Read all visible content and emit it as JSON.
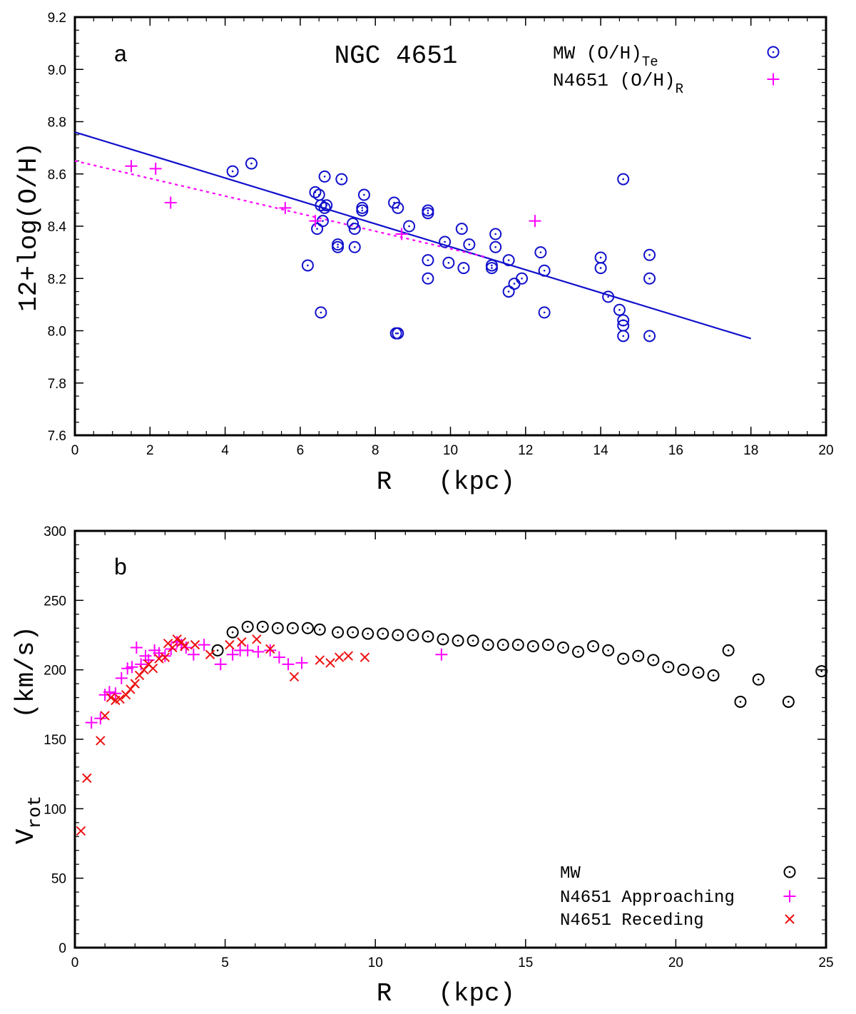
{
  "chart_data": [
    {
      "panel": "a",
      "type": "scatter",
      "title": "NGC 4651",
      "xlabel": "R   (kpc)",
      "ylabel": "12+log(O/H)",
      "xlim": [
        0,
        20
      ],
      "ylim": [
        7.6,
        9.2
      ],
      "xticks": [
        0,
        2,
        4,
        6,
        8,
        10,
        12,
        14,
        16,
        18,
        20
      ],
      "yticks": [
        "7.6",
        "7.8",
        "8.0",
        "8.2",
        "8.4",
        "8.6",
        "8.8",
        "9.0",
        "9.2"
      ],
      "grid": false,
      "legend_position": "top-right",
      "series": [
        {
          "name": "MW (O/H)",
          "subscript": "Te",
          "marker": "circle-dot",
          "color": "#1010cc",
          "points": [
            [
              4.2,
              8.61
            ],
            [
              4.7,
              8.64
            ],
            [
              6.2,
              8.25
            ],
            [
              6.4,
              8.53
            ],
            [
              6.45,
              8.39
            ],
            [
              6.5,
              8.52
            ],
            [
              6.55,
              8.48
            ],
            [
              6.55,
              8.07
            ],
            [
              6.6,
              8.42
            ],
            [
              6.65,
              8.59
            ],
            [
              6.65,
              8.47
            ],
            [
              6.7,
              8.48
            ],
            [
              7.0,
              8.33
            ],
            [
              7.0,
              8.32
            ],
            [
              7.1,
              8.58
            ],
            [
              7.4,
              8.41
            ],
            [
              7.45,
              8.39
            ],
            [
              7.45,
              8.32
            ],
            [
              7.65,
              8.47
            ],
            [
              7.65,
              8.46
            ],
            [
              7.7,
              8.52
            ],
            [
              8.5,
              8.49
            ],
            [
              8.55,
              7.99
            ],
            [
              8.6,
              8.47
            ],
            [
              8.6,
              7.99
            ],
            [
              8.9,
              8.4
            ],
            [
              9.4,
              8.46
            ],
            [
              9.4,
              8.45
            ],
            [
              9.4,
              8.27
            ],
            [
              9.4,
              8.2
            ],
            [
              9.85,
              8.34
            ],
            [
              9.95,
              8.26
            ],
            [
              10.3,
              8.39
            ],
            [
              10.35,
              8.24
            ],
            [
              10.5,
              8.33
            ],
            [
              11.1,
              8.25
            ],
            [
              11.1,
              8.24
            ],
            [
              11.2,
              8.37
            ],
            [
              11.2,
              8.32
            ],
            [
              11.55,
              8.27
            ],
            [
              11.55,
              8.15
            ],
            [
              11.7,
              8.18
            ],
            [
              11.9,
              8.2
            ],
            [
              12.4,
              8.3
            ],
            [
              12.5,
              8.23
            ],
            [
              12.5,
              8.07
            ],
            [
              14.0,
              8.28
            ],
            [
              14.0,
              8.24
            ],
            [
              14.2,
              8.13
            ],
            [
              14.5,
              8.08
            ],
            [
              14.6,
              8.58
            ],
            [
              14.6,
              8.04
            ],
            [
              14.6,
              8.02
            ],
            [
              14.6,
              7.98
            ],
            [
              15.3,
              8.29
            ],
            [
              15.3,
              8.2
            ],
            [
              15.3,
              7.98
            ]
          ]
        },
        {
          "name": "N4651 (O/H)",
          "subscript": "R",
          "marker": "plus",
          "color": "#ff00ff",
          "points": [
            [
              1.5,
              8.63
            ],
            [
              2.15,
              8.62
            ],
            [
              2.55,
              8.49
            ],
            [
              5.6,
              8.47
            ],
            [
              6.4,
              8.42
            ],
            [
              8.7,
              8.37
            ],
            [
              12.25,
              8.42
            ]
          ]
        }
      ],
      "fits": [
        {
          "color": "#1010cc",
          "style": "solid",
          "x": [
            0,
            18
          ],
          "y": [
            8.76,
            7.97
          ]
        },
        {
          "color": "#ff00ff",
          "style": "dotted",
          "x": [
            0,
            11
          ],
          "y": [
            8.65,
            8.28
          ]
        }
      ]
    },
    {
      "panel": "b",
      "type": "scatter",
      "xlabel": "R   (kpc)",
      "ylabel": "V",
      "ylabel_subscript": "rot",
      "ylabel_suffix": "(km/s)",
      "xlim": [
        0,
        25
      ],
      "ylim": [
        0,
        300
      ],
      "xticks": [
        0,
        5,
        10,
        15,
        20,
        25
      ],
      "yticks": [
        0,
        50,
        100,
        150,
        200,
        250,
        300
      ],
      "grid": false,
      "legend_position": "bottom-right",
      "series": [
        {
          "name": "MW",
          "marker": "circle-dot",
          "color": "#000000",
          "points": [
            [
              4.75,
              214
            ],
            [
              5.25,
              227
            ],
            [
              5.75,
              231
            ],
            [
              6.25,
              231
            ],
            [
              6.75,
              230
            ],
            [
              7.25,
              230
            ],
            [
              7.75,
              230
            ],
            [
              8.15,
              229
            ],
            [
              8.75,
              227
            ],
            [
              9.25,
              227
            ],
            [
              9.75,
              226
            ],
            [
              10.25,
              226
            ],
            [
              10.75,
              225
            ],
            [
              11.25,
              225
            ],
            [
              11.75,
              224
            ],
            [
              12.25,
              222
            ],
            [
              12.75,
              221
            ],
            [
              13.25,
              221
            ],
            [
              13.75,
              218
            ],
            [
              14.25,
              218
            ],
            [
              14.75,
              218
            ],
            [
              15.25,
              217
            ],
            [
              15.75,
              218
            ],
            [
              16.25,
              216
            ],
            [
              16.75,
              213
            ],
            [
              17.25,
              217
            ],
            [
              17.75,
              214
            ],
            [
              18.25,
              208
            ],
            [
              18.75,
              210
            ],
            [
              19.25,
              207
            ],
            [
              19.75,
              202
            ],
            [
              20.25,
              200
            ],
            [
              20.75,
              198
            ],
            [
              21.25,
              196
            ],
            [
              21.75,
              214
            ],
            [
              22.15,
              177
            ],
            [
              22.75,
              193
            ],
            [
              23.75,
              177
            ],
            [
              24.85,
              199
            ]
          ]
        },
        {
          "name": "N4651 Approaching",
          "marker": "plus",
          "color": "#ff00ff",
          "points": [
            [
              0.55,
              162
            ],
            [
              0.85,
              165
            ],
            [
              1.0,
              182
            ],
            [
              1.15,
              184
            ],
            [
              1.35,
              183
            ],
            [
              1.55,
              194
            ],
            [
              1.75,
              201
            ],
            [
              1.9,
              202
            ],
            [
              2.05,
              216
            ],
            [
              2.2,
              204
            ],
            [
              2.35,
              210
            ],
            [
              2.45,
              207
            ],
            [
              2.65,
              214
            ],
            [
              2.8,
              212
            ],
            [
              3.0,
              210
            ],
            [
              3.2,
              215
            ],
            [
              3.4,
              220
            ],
            [
              3.55,
              218
            ],
            [
              3.7,
              216
            ],
            [
              3.95,
              211
            ],
            [
              4.3,
              218
            ],
            [
              4.85,
              204
            ],
            [
              5.25,
              211
            ],
            [
              5.5,
              214
            ],
            [
              5.75,
              214
            ],
            [
              6.1,
              213
            ],
            [
              6.5,
              214
            ],
            [
              6.8,
              209
            ],
            [
              7.1,
              204
            ],
            [
              7.55,
              205
            ],
            [
              12.2,
              211
            ]
          ]
        },
        {
          "name": "N4651 Receding",
          "marker": "cross",
          "color": "#ee1111",
          "points": [
            [
              0.2,
              84
            ],
            [
              0.4,
              122
            ],
            [
              0.85,
              149
            ],
            [
              1.0,
              167
            ],
            [
              1.2,
              180
            ],
            [
              1.35,
              178
            ],
            [
              1.5,
              179
            ],
            [
              1.7,
              182
            ],
            [
              1.85,
              186
            ],
            [
              2.0,
              190
            ],
            [
              2.15,
              196
            ],
            [
              2.3,
              200
            ],
            [
              2.45,
              204
            ],
            [
              2.6,
              201
            ],
            [
              2.8,
              208
            ],
            [
              3.0,
              209
            ],
            [
              3.1,
              219
            ],
            [
              3.25,
              216
            ],
            [
              3.4,
              222
            ],
            [
              3.55,
              220
            ],
            [
              3.65,
              217
            ],
            [
              4.0,
              218
            ],
            [
              4.5,
              211
            ],
            [
              5.15,
              218
            ],
            [
              5.55,
              220
            ],
            [
              6.05,
              222
            ],
            [
              6.5,
              215
            ],
            [
              7.3,
              195
            ],
            [
              8.15,
              207
            ],
            [
              8.5,
              205
            ],
            [
              8.8,
              209
            ],
            [
              9.1,
              210
            ],
            [
              9.65,
              209
            ]
          ]
        }
      ]
    }
  ]
}
